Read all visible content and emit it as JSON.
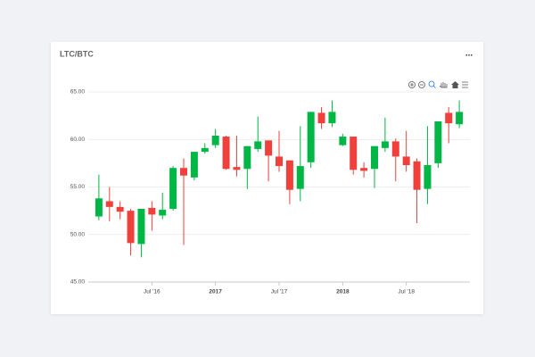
{
  "chart_data": {
    "type": "candlestick",
    "title": "LTC/BTC",
    "menu": "...",
    "x": [
      "2016-02",
      "2016-03",
      "2016-04",
      "2016-05",
      "2016-06",
      "2016-07",
      "2016-08",
      "2016-09",
      "2016-10",
      "2016-11",
      "2016-12",
      "2017-01",
      "2017-02",
      "2017-03",
      "2017-04",
      "2017-05",
      "2017-06",
      "2017-07",
      "2017-08",
      "2017-09",
      "2017-10",
      "2017-11",
      "2017-12",
      "2018-01",
      "2018-02",
      "2018-03",
      "2018-04",
      "2018-05",
      "2018-06",
      "2018-07",
      "2018-08",
      "2018-09",
      "2018-10",
      "2018-11",
      "2018-12"
    ],
    "series": [
      {
        "open": [
          51.9,
          53.5,
          52.9,
          52.5,
          49.0,
          52.8,
          52.0,
          52.7,
          57.0,
          56.0,
          58.7,
          59.4,
          60.3,
          57.1,
          56.9,
          59.0,
          59.9,
          58.2,
          57.8,
          54.8,
          57.6,
          62.8,
          61.7,
          59.4,
          60.3,
          57.0,
          56.9,
          59.1,
          59.8,
          58.2,
          57.7,
          54.8,
          57.5,
          62.8,
          61.6
        ],
        "high": [
          56.3,
          55.0,
          53.5,
          52.7,
          52.7,
          53.5,
          54.4,
          57.2,
          58.0,
          58.7,
          59.6,
          61.1,
          60.4,
          60.4,
          59.3,
          62.4,
          59.9,
          60.9,
          57.8,
          61.4,
          62.9,
          63.4,
          64.1,
          60.6,
          60.3,
          57.6,
          59.3,
          62.3,
          60.1,
          60.9,
          58.0,
          61.4,
          61.9,
          63.4,
          64.1
        ],
        "low": [
          51.5,
          51.4,
          51.6,
          47.8,
          47.6,
          50.4,
          51.6,
          52.5,
          48.9,
          55.7,
          58.5,
          59.1,
          56.8,
          56.1,
          54.8,
          58.7,
          55.6,
          56.6,
          53.2,
          53.5,
          57.0,
          61.1,
          61.3,
          59.3,
          56.3,
          56.0,
          54.9,
          58.7,
          55.6,
          56.6,
          51.2,
          53.2,
          57.0,
          59.6,
          61.2
        ],
        "close": [
          53.8,
          52.9,
          52.4,
          49.1,
          52.7,
          52.1,
          52.6,
          57.0,
          56.2,
          58.7,
          59.1,
          60.4,
          56.9,
          56.8,
          59.3,
          59.8,
          58.3,
          57.2,
          54.7,
          57.2,
          62.9,
          61.7,
          62.9,
          60.3,
          56.8,
          56.7,
          59.3,
          59.8,
          58.2,
          57.3,
          54.7,
          57.3,
          61.9,
          61.7,
          62.9
        ]
      }
    ],
    "up_color": "#00b746",
    "down_color": "#ef403c",
    "xlim": [
      "2016-01",
      "2019-01"
    ],
    "xticks": [
      {
        "value": "2016-07",
        "label": "Jul '16"
      },
      {
        "value": "2017-01",
        "label": "2017"
      },
      {
        "value": "2017-07",
        "label": "Jul '17"
      },
      {
        "value": "2018-01",
        "label": "2018"
      },
      {
        "value": "2018-07",
        "label": "Jul '18"
      }
    ],
    "ylim": [
      45,
      65
    ],
    "yticks": [
      {
        "value": 45,
        "label": "45.00"
      },
      {
        "value": 50,
        "label": "50.00"
      },
      {
        "value": 55,
        "label": "55.00"
      },
      {
        "value": 60,
        "label": "60.00"
      },
      {
        "value": 65,
        "label": "65.00"
      }
    ],
    "grid": true
  }
}
